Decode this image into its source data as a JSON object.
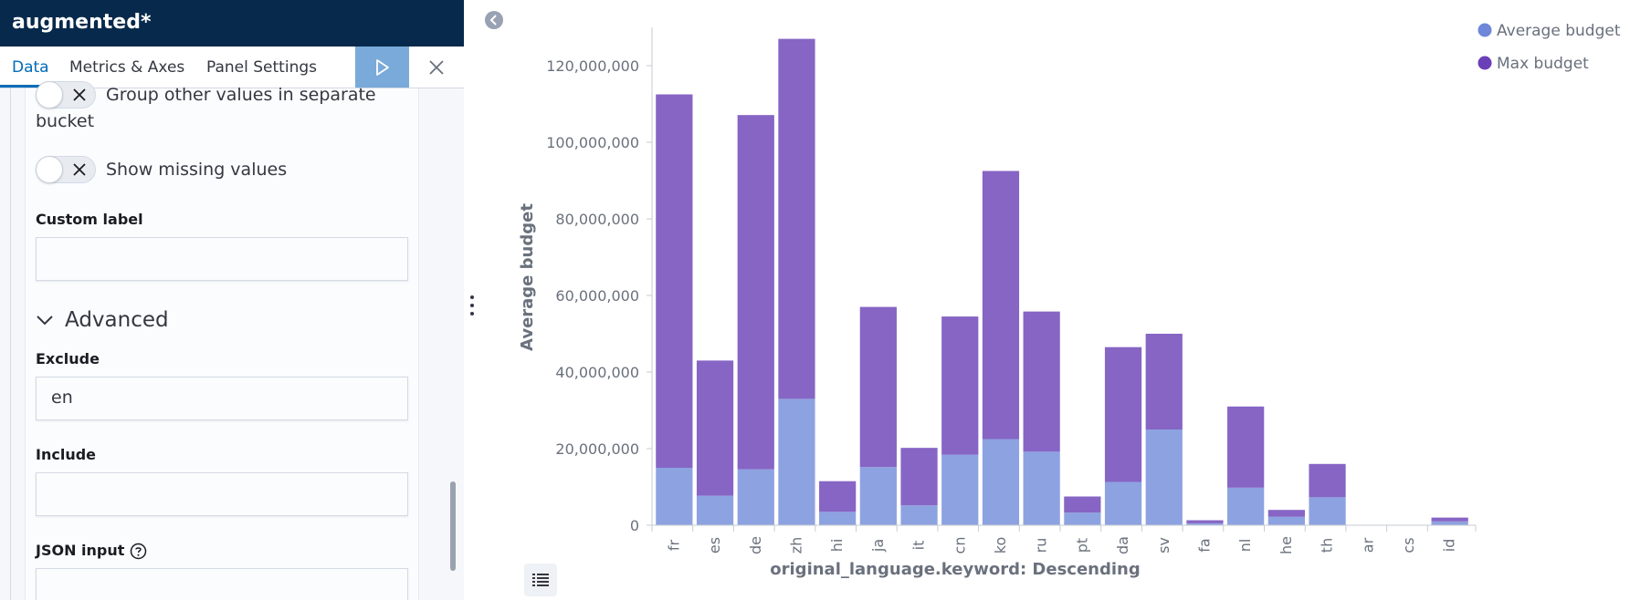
{
  "editor": {
    "title": "augmented*",
    "tabs": [
      {
        "label": "Data",
        "active": true
      },
      {
        "label": "Metrics & Axes",
        "active": false
      },
      {
        "label": "Panel Settings",
        "active": false
      }
    ],
    "run_icon": "play-icon",
    "close_icon": "close-icon",
    "switches": [
      {
        "label_line1": "Group other values in separate",
        "label_line2": "bucket",
        "checked": false
      },
      {
        "label": "Show missing values",
        "checked": false
      }
    ],
    "custom_label": {
      "label": "Custom label",
      "value": ""
    },
    "advanced": {
      "label": "Advanced",
      "expanded": true
    },
    "exclude": {
      "label": "Exclude",
      "value": "en"
    },
    "include": {
      "label": "Include",
      "value": ""
    },
    "json_input": {
      "label": "JSON input",
      "value": ""
    }
  },
  "colors": {
    "header_bg": "#07294b",
    "accent": "#006bb8",
    "run_button": "#79aad9",
    "series_average": "#8da2e0",
    "series_max": "#8665c5",
    "legend_average": "#6f87d8",
    "legend_max": "#6a3fb8"
  },
  "chart_data": {
    "type": "bar",
    "stacked": true,
    "xlabel": "original_language.keyword: Descending",
    "ylabel": "Average budget",
    "ylim": [
      0,
      130000000
    ],
    "yticks": [
      0,
      20000000,
      40000000,
      60000000,
      80000000,
      100000000,
      120000000
    ],
    "ytick_labels": [
      "0",
      "20,000,000",
      "40,000,000",
      "60,000,000",
      "80,000,000",
      "100,000,000",
      "120,000,000"
    ],
    "categories": [
      "fr",
      "es",
      "de",
      "zh",
      "hi",
      "ja",
      "it",
      "cn",
      "ko",
      "ru",
      "pt",
      "da",
      "sv",
      "fa",
      "nl",
      "he",
      "th",
      "ar",
      "cs",
      "id"
    ],
    "series": [
      {
        "name": "Average budget",
        "values": [
          15000000,
          7700000,
          14600000,
          33000000,
          3500000,
          15200000,
          5200000,
          18400000,
          22500000,
          19200000,
          3300000,
          11300000,
          25000000,
          500000,
          9800000,
          2200000,
          7300000,
          0,
          0,
          1000000
        ]
      },
      {
        "name": "Max budget",
        "values": [
          97500000,
          35300000,
          92500000,
          94000000,
          8000000,
          41800000,
          15000000,
          36100000,
          70000000,
          36600000,
          4200000,
          35200000,
          25000000,
          800000,
          21200000,
          1800000,
          8700000,
          0,
          0,
          1000000
        ]
      }
    ],
    "legend_position": "top-right",
    "grid": false
  }
}
